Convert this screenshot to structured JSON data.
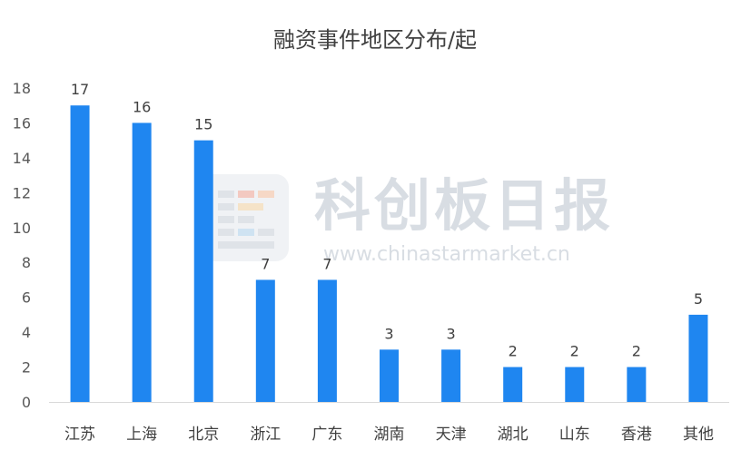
{
  "chart_data": {
    "type": "bar",
    "title": "融资事件地区分布/起",
    "categories": [
      "江苏",
      "上海",
      "北京",
      "浙江",
      "广东",
      "湖南",
      "天津",
      "湖北",
      "山东",
      "香港",
      "其他"
    ],
    "values": [
      17,
      16,
      15,
      7,
      7,
      3,
      3,
      2,
      2,
      2,
      5
    ],
    "xlabel": "",
    "ylabel": "",
    "ylim": [
      0,
      18
    ],
    "yticks": [
      0,
      2,
      4,
      6,
      8,
      10,
      12,
      14,
      16,
      18
    ],
    "grid": false,
    "data_labels": true,
    "bar_color": "#1f86f0"
  },
  "watermark": {
    "name": "科创板日报",
    "url": "www.chinastarmarket.cn",
    "logo_icon": "kechuang-logo-icon"
  }
}
